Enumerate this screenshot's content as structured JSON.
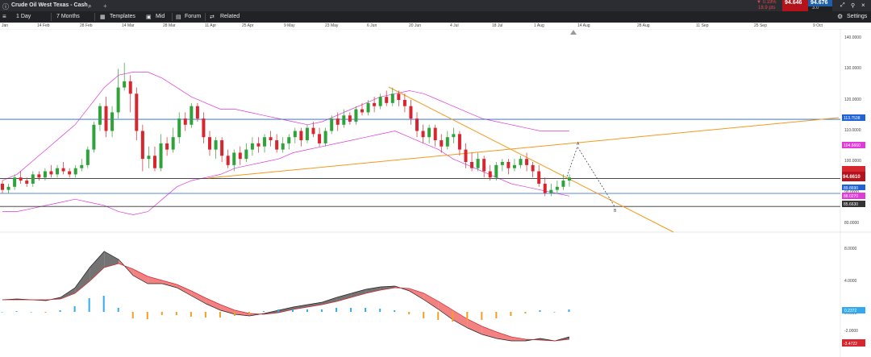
{
  "topbar": {
    "instrument": "Crude Oil West Texas - Cash",
    "change_pct": "▼ 0.19%",
    "change_pts": "18.9 pts",
    "bid": "94.646",
    "ask": "94.676",
    "spread": "3.0",
    "settings": "Settings",
    "bid_color": "#b5131b",
    "ask_color": "#1f5fa8"
  },
  "toolbar": {
    "interval": "1 Day",
    "range": "7 Months",
    "templates": "Templates",
    "mid": "Mid",
    "forum": "Forum",
    "related": "Related"
  },
  "dates": [
    "Jan",
    "14 Feb",
    "28 Feb",
    "14 Mar",
    "28 Mar",
    "11 Apr",
    "25 Apr",
    "9 May",
    "23 May",
    "6 Jun",
    "20 Jun",
    "4 Jul",
    "18 Jul",
    "1 Aug",
    "14 Aug",
    "28 Aug",
    "11 Sep",
    "25 Sep",
    "9 Oct"
  ],
  "price_axis": [
    "140.0000",
    "130.0000",
    "120.0000",
    "110.0000",
    "100.0000",
    "90.0000",
    "80.0000"
  ],
  "price_tags": {
    "upper_band": "113.7538",
    "upper_env": "104.6660",
    "last": "94.6610",
    "lower_line": "89.8690",
    "lower_band": "88.0270",
    "support": "85.6630"
  },
  "projection_labels": {
    "a": "A",
    "b": "B"
  },
  "macd_axis": [
    "8.0000",
    "4.0000",
    "0.0000",
    "-2.0000"
  ],
  "macd_tags": {
    "histogram": "0.2372",
    "signal": "-3.4722"
  },
  "chart_data": {
    "type": "line",
    "price_ylim": [
      80,
      140
    ],
    "macd_ylim": [
      -5,
      9
    ],
    "candles": [
      [
        93,
        91,
        94,
        90
      ],
      [
        91,
        92,
        93,
        90
      ],
      [
        92,
        95,
        96,
        91
      ],
      [
        95,
        94,
        97,
        93
      ],
      [
        94,
        93,
        95,
        92
      ],
      [
        93,
        96,
        97,
        92
      ],
      [
        96,
        95,
        97,
        94
      ],
      [
        95,
        97,
        98,
        94
      ],
      [
        97,
        96,
        99,
        95
      ],
      [
        96,
        98,
        99,
        95
      ],
      [
        98,
        97,
        100,
        96
      ],
      [
        97,
        96,
        98,
        95
      ],
      [
        96,
        98,
        99,
        95
      ],
      [
        98,
        99,
        101,
        97
      ],
      [
        99,
        104,
        105,
        98
      ],
      [
        104,
        112,
        113,
        103
      ],
      [
        112,
        118,
        119,
        110
      ],
      [
        118,
        110,
        121,
        108
      ],
      [
        110,
        116,
        118,
        108
      ],
      [
        116,
        124,
        130,
        114
      ],
      [
        124,
        126,
        132,
        123
      ],
      [
        126,
        122,
        128,
        116
      ],
      [
        122,
        110,
        124,
        107
      ],
      [
        110,
        101,
        112,
        97
      ],
      [
        101,
        102,
        105,
        98
      ],
      [
        102,
        98,
        105,
        97
      ],
      [
        98,
        106,
        109,
        97
      ],
      [
        106,
        104,
        108,
        102
      ],
      [
        104,
        108,
        111,
        103
      ],
      [
        108,
        114,
        116,
        106
      ],
      [
        114,
        112,
        116,
        110
      ],
      [
        112,
        118,
        119,
        111
      ],
      [
        118,
        114,
        119,
        113
      ],
      [
        114,
        108,
        116,
        106
      ],
      [
        108,
        104,
        110,
        102
      ],
      [
        104,
        107,
        108,
        101
      ],
      [
        107,
        102,
        108,
        100
      ],
      [
        102,
        99,
        104,
        98
      ],
      [
        99,
        103,
        104,
        97
      ],
      [
        103,
        101,
        105,
        99
      ],
      [
        101,
        104,
        106,
        100
      ],
      [
        104,
        106,
        108,
        102
      ],
      [
        106,
        105,
        108,
        103
      ],
      [
        105,
        108,
        109,
        103
      ],
      [
        108,
        107,
        110,
        105
      ],
      [
        107,
        104,
        109,
        103
      ],
      [
        104,
        106,
        108,
        103
      ],
      [
        106,
        108,
        109,
        104
      ],
      [
        108,
        110,
        111,
        106
      ],
      [
        110,
        107,
        111,
        105
      ],
      [
        107,
        111,
        112,
        106
      ],
      [
        111,
        109,
        113,
        108
      ],
      [
        109,
        106,
        111,
        105
      ],
      [
        106,
        110,
        111,
        105
      ],
      [
        110,
        114,
        115,
        109
      ],
      [
        114,
        112,
        116,
        110
      ],
      [
        112,
        115,
        117,
        111
      ],
      [
        115,
        113,
        116,
        112
      ],
      [
        113,
        117,
        118,
        112
      ],
      [
        117,
        116,
        119,
        115
      ],
      [
        116,
        119,
        120,
        115
      ],
      [
        119,
        118,
        121,
        116
      ],
      [
        118,
        121,
        122,
        117
      ],
      [
        121,
        119,
        123,
        118
      ],
      [
        119,
        122,
        124,
        118
      ],
      [
        122,
        120,
        123,
        118
      ],
      [
        120,
        118,
        122,
        116
      ],
      [
        118,
        114,
        120,
        112
      ],
      [
        114,
        110,
        116,
        108
      ],
      [
        110,
        108,
        112,
        106
      ],
      [
        108,
        111,
        112,
        106
      ],
      [
        111,
        107,
        112,
        105
      ],
      [
        107,
        105,
        109,
        103
      ],
      [
        105,
        108,
        110,
        104
      ],
      [
        108,
        109,
        111,
        106
      ],
      [
        109,
        104,
        110,
        102
      ],
      [
        104,
        100,
        106,
        98
      ],
      [
        100,
        98,
        103,
        97
      ],
      [
        98,
        101,
        103,
        97
      ],
      [
        101,
        97,
        102,
        95
      ],
      [
        97,
        95,
        99,
        94
      ],
      [
        95,
        99,
        100,
        94
      ],
      [
        99,
        100,
        101,
        97
      ],
      [
        100,
        98,
        101,
        96
      ],
      [
        98,
        99,
        101,
        97
      ],
      [
        99,
        101,
        102,
        98
      ],
      [
        101,
        99,
        103,
        97
      ],
      [
        99,
        97,
        100,
        95
      ],
      [
        97,
        93,
        99,
        92
      ],
      [
        93,
        90,
        95,
        89
      ],
      [
        90,
        91,
        93,
        89
      ],
      [
        91,
        92,
        94,
        90
      ],
      [
        92,
        94,
        96,
        91
      ],
      [
        94,
        95,
        96,
        92
      ]
    ],
    "series": [
      {
        "type": "upper-band",
        "values": [
          94,
          96,
          100,
          104,
          108,
          112,
          118,
          124,
          128,
          129,
          129,
          127,
          124,
          121,
          119,
          117,
          117,
          116,
          115,
          114,
          113,
          112,
          113,
          115,
          117,
          119,
          121,
          122,
          123,
          122,
          120,
          118,
          116,
          114,
          113,
          112,
          111,
          110,
          110,
          110
        ]
      },
      {
        "type": "lower-band",
        "values": [
          84,
          84,
          85,
          86,
          87,
          88,
          87,
          86,
          84,
          83,
          84,
          88,
          92,
          94,
          95,
          96,
          98,
          99,
          100,
          101,
          103,
          104,
          105,
          106,
          107,
          108,
          109,
          110,
          108,
          106,
          104,
          101,
          99,
          97,
          95,
          93,
          92,
          91,
          90,
          89
        ]
      },
      {
        "type": "macd",
        "values": [
          1.5,
          1.6,
          1.5,
          1.4,
          1.8,
          3.0,
          5.5,
          7.5,
          6.5,
          4.5,
          3.5,
          3.5,
          3.0,
          2.0,
          1.0,
          0.2,
          -0.3,
          -0.5,
          -0.2,
          0.2,
          0.6,
          0.9,
          1.2,
          1.8,
          2.3,
          2.8,
          3.1,
          3.2,
          2.6,
          1.5,
          0.3,
          -1.0,
          -2.0,
          -2.8,
          -3.3,
          -3.6,
          -3.6,
          -3.3,
          -3.6,
          -3.1
        ]
      },
      {
        "type": "signal",
        "values": [
          1.5,
          1.5,
          1.5,
          1.5,
          1.6,
          2.3,
          3.8,
          5.5,
          6.0,
          5.3,
          4.4,
          3.9,
          3.4,
          2.6,
          1.7,
          0.9,
          0.2,
          -0.2,
          -0.3,
          -0.1,
          0.3,
          0.6,
          0.9,
          1.3,
          1.8,
          2.3,
          2.7,
          3.0,
          2.9,
          2.3,
          1.3,
          0.2,
          -0.9,
          -1.8,
          -2.5,
          -3.1,
          -3.4,
          -3.5,
          -3.6,
          -3.4
        ]
      },
      {
        "type": "histogram",
        "values": [
          0,
          0.1,
          0,
          -0.1,
          0.2,
          0.7,
          1.7,
          2.0,
          0.5,
          -0.8,
          -0.9,
          -0.4,
          -0.4,
          -0.6,
          -0.7,
          -0.7,
          -0.5,
          -0.3,
          0.1,
          0.3,
          0.3,
          0.3,
          0.3,
          0.5,
          0.5,
          0.5,
          0.4,
          0.2,
          -0.3,
          -0.8,
          -1.0,
          -1.2,
          -1.1,
          -1.0,
          -0.8,
          -0.5,
          -0.2,
          0.2,
          0,
          0.3
        ]
      }
    ],
    "horizontal_levels": [
      {
        "value": 113.7538,
        "color": "#1e63d6"
      },
      {
        "value": 94.661,
        "color": "#333333"
      },
      {
        "value": 89.869,
        "color": "#1e63d6"
      },
      {
        "value": 85.663,
        "color": "#333333"
      }
    ],
    "colors": {
      "up": "#2fa33a",
      "down": "#d8262f",
      "band": "#e03ad8",
      "trend": "#f49a1c",
      "macd_up_fill": "#5a5a5a",
      "macd_down_fill": "#f06b6b",
      "hist_up": "#33aaf0",
      "hist_down": "#f0a020"
    }
  }
}
